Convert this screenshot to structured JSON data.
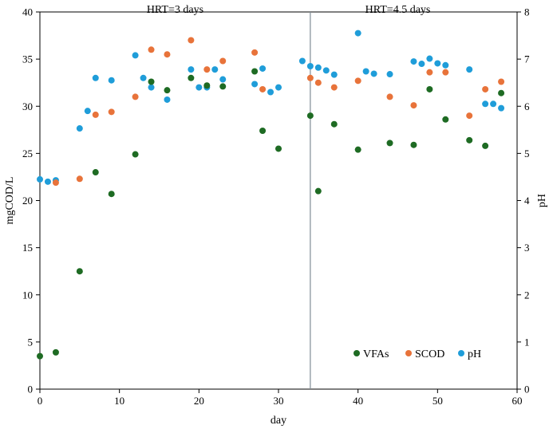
{
  "chart_data": {
    "type": "scatter",
    "title": "",
    "xlabel": "day",
    "ylabel": "mgCOD/L",
    "y2label": "pH",
    "xlim": [
      0,
      60
    ],
    "ylim": [
      0,
      40
    ],
    "y2lim": [
      0,
      8
    ],
    "x_ticks": [
      "0",
      "10",
      "20",
      "30",
      "40",
      "50",
      "60"
    ],
    "y_ticks": [
      "0",
      "5",
      "10",
      "15",
      "20",
      "25",
      "30",
      "35",
      "40"
    ],
    "y2_ticks": [
      "0",
      "1",
      "2",
      "3",
      "4",
      "5",
      "6",
      "7",
      "8"
    ],
    "grid": false,
    "legend_position": "bottom-right",
    "vertical_line": {
      "x": 34
    },
    "annotations": [
      {
        "text": "HRT=3 days",
        "x": 17,
        "y": 40
      },
      {
        "text": "HRT=4.5 days",
        "x": 45,
        "y": 40
      }
    ],
    "series": [
      {
        "name": "VFAs",
        "axis": "left",
        "color": "#1e6b23",
        "points": [
          [
            0,
            3.5
          ],
          [
            2,
            3.9
          ],
          [
            5,
            12.5
          ],
          [
            7,
            23.0
          ],
          [
            9,
            20.7
          ],
          [
            12,
            24.9
          ],
          [
            14,
            32.6
          ],
          [
            16,
            31.7
          ],
          [
            19,
            33.0
          ],
          [
            21,
            32.2
          ],
          [
            23,
            32.1
          ],
          [
            27,
            33.7
          ],
          [
            28,
            27.4
          ],
          [
            30,
            25.5
          ],
          [
            34,
            29.0
          ],
          [
            35,
            21.0
          ],
          [
            37,
            28.1
          ],
          [
            40,
            25.4
          ],
          [
            44,
            26.1
          ],
          [
            47,
            25.9
          ],
          [
            49,
            31.8
          ],
          [
            51,
            28.6
          ],
          [
            54,
            26.4
          ],
          [
            56,
            25.8
          ],
          [
            58,
            31.4
          ]
        ]
      },
      {
        "name": "SCOD",
        "axis": "left",
        "color": "#e8733a",
        "points": [
          [
            2,
            21.9
          ],
          [
            5,
            22.3
          ],
          [
            7,
            29.1
          ],
          [
            9,
            29.4
          ],
          [
            12,
            31.0
          ],
          [
            14,
            36.0
          ],
          [
            16,
            35.5
          ],
          [
            19,
            37.0
          ],
          [
            21,
            33.9
          ],
          [
            23,
            34.8
          ],
          [
            27,
            35.7
          ],
          [
            28,
            31.8
          ],
          [
            34,
            33.0
          ],
          [
            35,
            32.5
          ],
          [
            37,
            32.0
          ],
          [
            40,
            32.7
          ],
          [
            44,
            31.0
          ],
          [
            47,
            30.1
          ],
          [
            49,
            33.6
          ],
          [
            51,
            33.6
          ],
          [
            54,
            29.0
          ],
          [
            56,
            31.8
          ],
          [
            58,
            32.6
          ]
        ]
      },
      {
        "name": "pH",
        "axis": "right",
        "color": "#1f9dd9",
        "points": [
          [
            0,
            4.45
          ],
          [
            1,
            4.4
          ],
          [
            2,
            4.43
          ],
          [
            5,
            5.53
          ],
          [
            6,
            5.9
          ],
          [
            7,
            6.6
          ],
          [
            9,
            6.55
          ],
          [
            12,
            7.08
          ],
          [
            13,
            6.6
          ],
          [
            14,
            6.4
          ],
          [
            16,
            6.14
          ],
          [
            19,
            6.78
          ],
          [
            20,
            6.4
          ],
          [
            21,
            6.4
          ],
          [
            22,
            6.78
          ],
          [
            23,
            6.57
          ],
          [
            27,
            6.47
          ],
          [
            28,
            6.8
          ],
          [
            29,
            6.3
          ],
          [
            30,
            6.4
          ],
          [
            33,
            6.96
          ],
          [
            34,
            6.85
          ],
          [
            35,
            6.82
          ],
          [
            36,
            6.76
          ],
          [
            37,
            6.67
          ],
          [
            40,
            7.55
          ],
          [
            41,
            6.74
          ],
          [
            42,
            6.69
          ],
          [
            44,
            6.68
          ],
          [
            47,
            6.95
          ],
          [
            48,
            6.9
          ],
          [
            49,
            7.01
          ],
          [
            50,
            6.91
          ],
          [
            51,
            6.87
          ],
          [
            54,
            6.78
          ],
          [
            56,
            6.05
          ],
          [
            57,
            6.05
          ],
          [
            58,
            5.96
          ]
        ]
      }
    ]
  }
}
